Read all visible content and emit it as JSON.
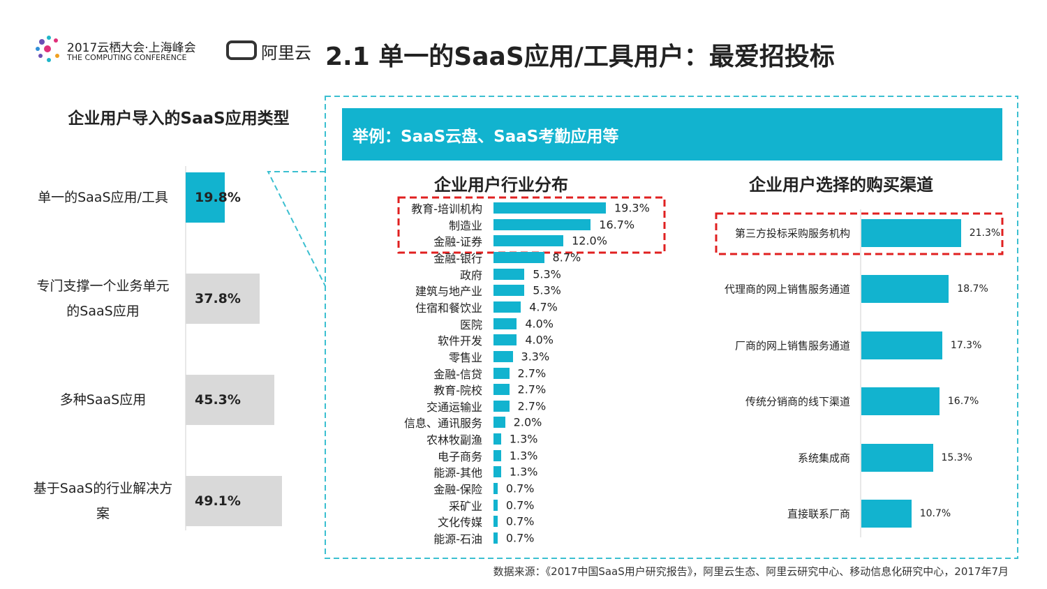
{
  "header": {
    "event": "2017云栖大会·上海峰会",
    "event_sub": "THE COMPUTING CONFERENCE",
    "brand": "阿里云",
    "title": "2.1 单一的SaaS应用/工具用户：最爱招投标"
  },
  "banner": "举例：SaaS云盘、SaaS考勤应用等",
  "source": "数据来源：《2017中国SaaS用户研究报告》，阿里云生态、阿里云研究中心、移动信息化研究中心，2017年7月",
  "chart_data": [
    {
      "type": "bar",
      "orientation": "horizontal",
      "title": "企业用户导入的SaaS应用类型",
      "categories": [
        "单一的SaaS应用/工具",
        "专门支撑一个业务单元的SaaS应用",
        "多种SaaS应用",
        "基于SaaS的行业解决方案"
      ],
      "values": [
        19.8,
        37.8,
        45.3,
        49.1
      ],
      "value_labels": [
        "19.8%",
        "37.8%",
        "45.3%",
        "49.1%"
      ],
      "colors": [
        "#12b3cf",
        "#d9d9d9",
        "#d9d9d9",
        "#d9d9d9"
      ]
    },
    {
      "type": "bar",
      "orientation": "horizontal",
      "title": "企业用户行业分布",
      "categories": [
        "教育-培训机构",
        "制造业",
        "金融-证券",
        "金融-银行",
        "政府",
        "建筑与地产业",
        "住宿和餐饮业",
        "医院",
        "软件开发",
        "零售业",
        "金融-信贷",
        "教育-院校",
        "交通运输业",
        "信息、通讯服务",
        "农林牧副渔",
        "电子商务",
        "能源-其他",
        "金融-保险",
        "采矿业",
        "文化传媒",
        "能源-石油"
      ],
      "values": [
        19.3,
        16.7,
        12.0,
        8.7,
        5.3,
        5.3,
        4.7,
        4.0,
        4.0,
        3.3,
        2.7,
        2.7,
        2.7,
        2.0,
        1.3,
        1.3,
        1.3,
        0.7,
        0.7,
        0.7,
        0.7
      ],
      "value_labels": [
        "19.3%",
        "16.7%",
        "12.0%",
        "8.7%",
        "5.3%",
        "5.3%",
        "4.7%",
        "4.0%",
        "4.0%",
        "3.3%",
        "2.7%",
        "2.7%",
        "2.7%",
        "2.0%",
        "1.3%",
        "1.3%",
        "1.3%",
        "0.7%",
        "0.7%",
        "0.7%",
        "0.7%"
      ],
      "color": "#12b3cf"
    },
    {
      "type": "bar",
      "orientation": "horizontal",
      "title": "企业用户选择的购买渠道",
      "categories": [
        "第三方投标采购服务机构",
        "代理商的网上销售服务通道",
        "厂商的网上销售服务通道",
        "传统分销商的线下渠道",
        "系统集成商",
        "直接联系厂商"
      ],
      "values": [
        21.3,
        18.7,
        17.3,
        16.7,
        15.3,
        10.7
      ],
      "value_labels": [
        "21.3%",
        "18.7%",
        "17.3%",
        "16.7%",
        "15.3%",
        "10.7%"
      ],
      "color": "#12b3cf"
    }
  ]
}
